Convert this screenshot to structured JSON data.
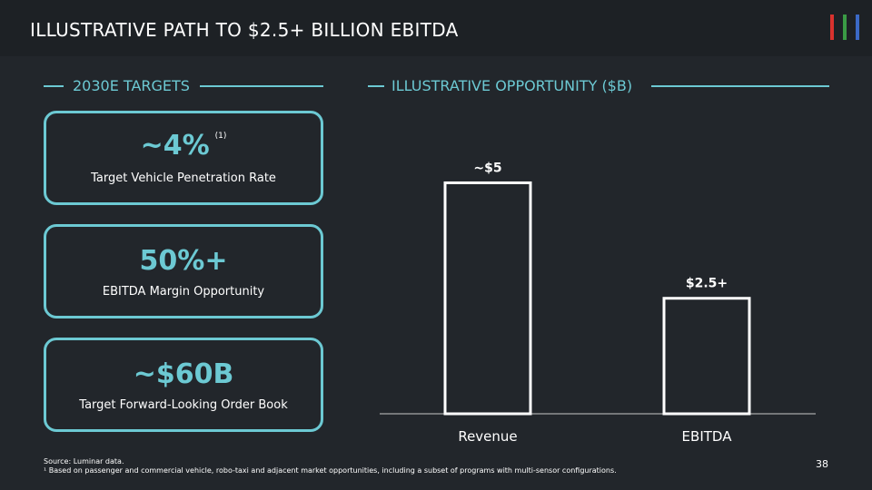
{
  "title": "ILLUSTRATIVE PATH TO $2.5+ BILLION EBITDA",
  "logo": {
    "colors": [
      "#d9322e",
      "#3a9b45",
      "#3b69c6"
    ]
  },
  "left_section": {
    "label": "2030E TARGETS"
  },
  "right_section": {
    "label": "ILLUSTRATIVE OPPORTUNITY ($B)"
  },
  "cards": [
    {
      "value": "~4%",
      "footnote_ref": "(1)",
      "caption": "Target Vehicle Penetration Rate"
    },
    {
      "value": "50%+",
      "caption": "EBITDA Margin Opportunity"
    },
    {
      "value": "~$60B",
      "caption": "Target Forward-Looking Order Book"
    }
  ],
  "chart_data": {
    "type": "bar",
    "categories": [
      "Revenue",
      "EBITDA"
    ],
    "values": [
      5,
      2.5
    ],
    "data_labels": [
      "~$5",
      "$2.5+"
    ],
    "ylim": [
      0,
      5.5
    ],
    "grid": false
  },
  "footer": {
    "source": "Source: Luminar data.",
    "note": "¹ Based on passenger and commercial vehicle, robo-taxi and adjacent market opportunities, including a subset of programs with multi-sensor configurations."
  },
  "page_number": "38"
}
